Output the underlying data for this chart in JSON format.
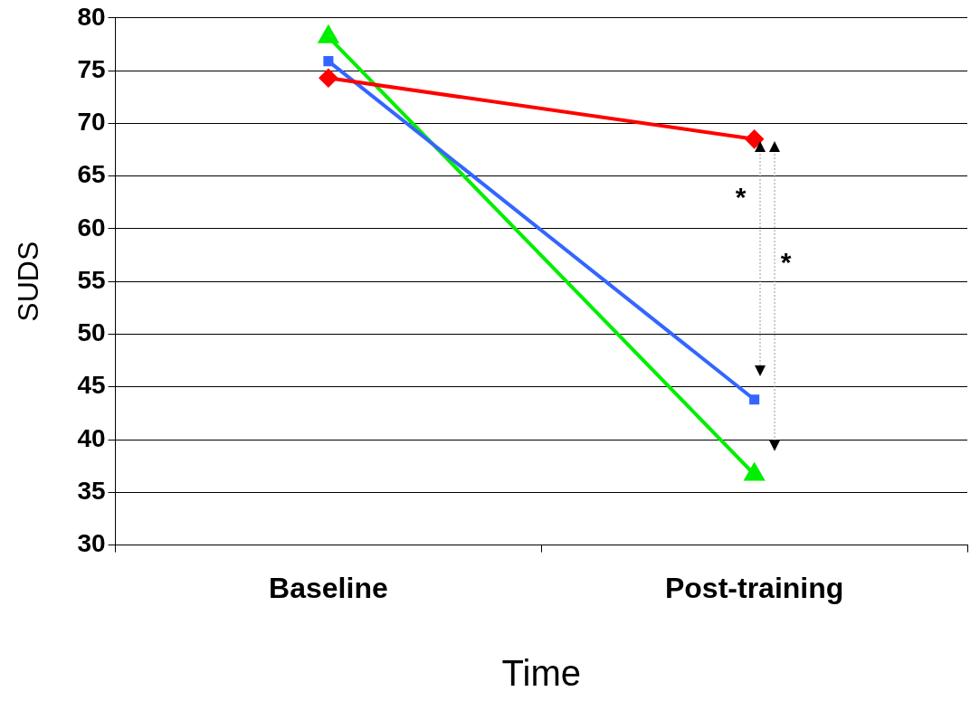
{
  "chart_data": {
    "type": "line",
    "xlabel": "Time",
    "ylabel": "SUDS",
    "categories": [
      "Baseline",
      "Post-training"
    ],
    "series": [
      {
        "color": "#ff0000",
        "marker": "diamond",
        "values": [
          74.3,
          68.5
        ]
      },
      {
        "color": "#3366ff",
        "marker": "square",
        "values": [
          75.9,
          43.8
        ]
      },
      {
        "color": "#00ee00",
        "marker": "triangle",
        "values": [
          78.2,
          36.7
        ]
      }
    ],
    "ylim": [
      30,
      80
    ],
    "yticks": [
      30,
      35,
      40,
      45,
      50,
      55,
      60,
      65,
      70,
      75,
      80
    ],
    "grid": "y",
    "legend": false,
    "annotations": [
      "*",
      "*"
    ]
  }
}
